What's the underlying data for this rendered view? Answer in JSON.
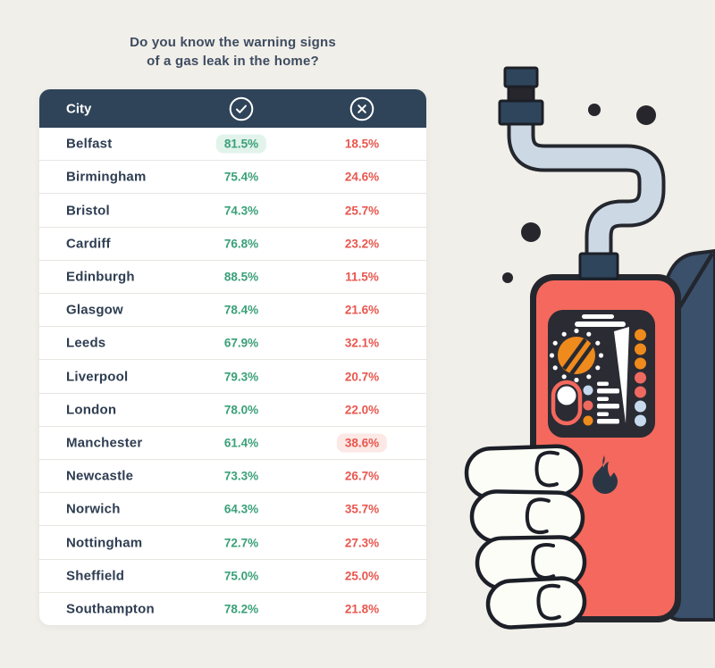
{
  "title": {
    "line1": "Do you know the warning signs",
    "line2": "of a gas leak in the home?"
  },
  "table": {
    "header": {
      "city": "City",
      "yes_icon": "check-circle-icon",
      "no_icon": "cross-circle-icon"
    },
    "rows": [
      {
        "city": "Belfast",
        "yes": "81.5%",
        "no": "18.5%",
        "highlight": "yes"
      },
      {
        "city": "Birmingham",
        "yes": "75.4%",
        "no": "24.6%"
      },
      {
        "city": "Bristol",
        "yes": "74.3%",
        "no": "25.7%"
      },
      {
        "city": "Cardiff",
        "yes": "76.8%",
        "no": "23.2%"
      },
      {
        "city": "Edinburgh",
        "yes": "88.5%",
        "no": "11.5%"
      },
      {
        "city": "Glasgow",
        "yes": "78.4%",
        "no": "21.6%"
      },
      {
        "city": "Leeds",
        "yes": "67.9%",
        "no": "32.1%"
      },
      {
        "city": "Liverpool",
        "yes": "79.3%",
        "no": "20.7%"
      },
      {
        "city": "London",
        "yes": "78.0%",
        "no": "22.0%"
      },
      {
        "city": "Manchester",
        "yes": "61.4%",
        "no": "38.6%",
        "highlight": "no"
      },
      {
        "city": "Newcastle",
        "yes": "73.3%",
        "no": "26.7%"
      },
      {
        "city": "Norwich",
        "yes": "64.3%",
        "no": "35.7%"
      },
      {
        "city": "Nottingham",
        "yes": "72.7%",
        "no": "27.3%"
      },
      {
        "city": "Sheffield",
        "yes": "75.0%",
        "no": "25.0%"
      },
      {
        "city": "Southampton",
        "yes": "78.2%",
        "no": "21.8%"
      }
    ]
  },
  "chart_data": {
    "type": "table",
    "title": "Do you know the warning signs of a gas leak in the home?",
    "columns": [
      "City",
      "Yes (✓)",
      "No (✕)"
    ],
    "rows": [
      [
        "Belfast",
        81.5,
        18.5
      ],
      [
        "Birmingham",
        75.4,
        24.6
      ],
      [
        "Bristol",
        74.3,
        25.7
      ],
      [
        "Cardiff",
        76.8,
        23.2
      ],
      [
        "Edinburgh",
        88.5,
        11.5
      ],
      [
        "Glasgow",
        78.4,
        21.6
      ],
      [
        "Leeds",
        67.9,
        32.1
      ],
      [
        "Liverpool",
        79.3,
        20.7
      ],
      [
        "London",
        78.0,
        22.0
      ],
      [
        "Manchester",
        61.4,
        38.6
      ],
      [
        "Newcastle",
        73.3,
        26.7
      ],
      [
        "Norwich",
        64.3,
        35.7
      ],
      [
        "Nottingham",
        72.7,
        27.3
      ],
      [
        "Sheffield",
        75.0,
        25.0
      ],
      [
        "Southampton",
        78.2,
        21.8
      ]
    ],
    "units": "%",
    "highlighted_cells": [
      {
        "city": "Belfast",
        "column": "Yes",
        "style": "green-pill"
      },
      {
        "city": "Manchester",
        "column": "No",
        "style": "red-pill"
      }
    ]
  },
  "colors": {
    "background": "#f1efe9",
    "title_text": "#3e4c61",
    "header_bg": "#2f4459",
    "header_text": "#ffffff",
    "city_text": "#2e3d51",
    "yes_text": "#3aa078",
    "yes_pill_bg": "#e2f3ec",
    "no_text": "#e9564e",
    "no_pill_bg": "#fce8e5",
    "row_divider": "#e7e6e1",
    "device_body": "#f4685d",
    "device_panel": "#2a2b33",
    "dial_orange": "#ef8a1c",
    "hose_fill": "#ccd9e5",
    "arm_navy": "#3a506b",
    "outline_dark": "#25272e"
  },
  "illustration": {
    "description": "Cartoon hand holding a coral handheld gas-leak detector with flexible sensor hose, dial, gauge needle, indicator lights, toggle switch and flame logo"
  }
}
